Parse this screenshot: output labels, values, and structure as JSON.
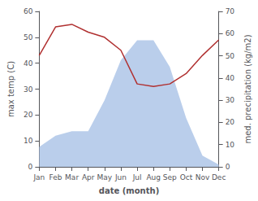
{
  "chart_data": {
    "type": "line",
    "xlabel": "date (month)",
    "ylabel": "max temp (C)",
    "y2label": "med. precipitation (kg/m2)",
    "categories": [
      "Jan",
      "Feb",
      "Mar",
      "Apr",
      "May",
      "Jun",
      "Jul",
      "Aug",
      "Sep",
      "Oct",
      "Nov",
      "Dec"
    ],
    "series": [
      {
        "type": "area",
        "axis": "y2",
        "color": "#aec6e8",
        "values": [
          9,
          14,
          16,
          16,
          30,
          48,
          57,
          57,
          45,
          22,
          5,
          1
        ]
      },
      {
        "type": "line",
        "color": "#b03030",
        "values": [
          43,
          54,
          55,
          52,
          50,
          45,
          32,
          31,
          32,
          36,
          43,
          49
        ]
      }
    ],
    "ylim": [
      0,
      60
    ],
    "yticks": [
      0,
      10,
      20,
      30,
      40,
      50,
      60
    ],
    "y2lim": [
      0,
      70
    ],
    "y2ticks": [
      0,
      10,
      20,
      30,
      40,
      50,
      60,
      70
    ],
    "grid": false
  }
}
